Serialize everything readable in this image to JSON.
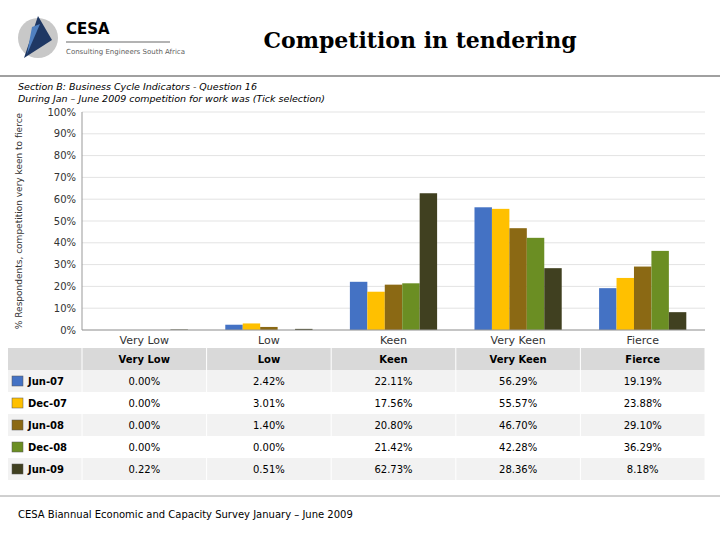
{
  "chart_data": {
    "type": "bar",
    "title": "Competition in tendering",
    "subtitle": [
      "Section B: Business Cycle Indicators - Question 16",
      "During Jan – June 2009 competition for work was (Tick selection)"
    ],
    "annotations": [
      "CESA",
      "Consulting Engineers South Africa",
      "CESA Biannual Economic and Capacity Survey January – June 2009"
    ],
    "y_label": "% Respondents, competition very keen to fierce",
    "categories": [
      "Very Low",
      "Low",
      "Keen",
      "Very Keen",
      "Fierce"
    ],
    "series": [
      {
        "name": "Jun-07",
        "color": "#4472C4",
        "values": [
          0.0,
          2.42,
          22.11,
          56.29,
          19.19
        ],
        "value_labels": [
          "0.00%",
          "2.42%",
          "22.11%",
          "56.29%",
          "19.19%"
        ]
      },
      {
        "name": "Dec-07",
        "color": "#FFC000",
        "values": [
          0.0,
          3.01,
          17.56,
          55.57,
          23.88
        ],
        "value_labels": [
          "0.00%",
          "3.01%",
          "17.56%",
          "55.57%",
          "23.88%"
        ]
      },
      {
        "name": "Jun-08",
        "color": "#8B6914",
        "values": [
          0.0,
          1.4,
          20.8,
          46.7,
          29.1
        ],
        "value_labels": [
          "0.00%",
          "1.40%",
          "20.80%",
          "46.70%",
          "29.10%"
        ]
      },
      {
        "name": "Dec-08",
        "color": "#6B8E23",
        "values": [
          0.0,
          0.0,
          21.42,
          42.28,
          36.29
        ],
        "value_labels": [
          "0.00%",
          "0.00%",
          "21.42%",
          "42.28%",
          "36.29%"
        ]
      },
      {
        "name": "Jun-09",
        "color": "#404020",
        "values": [
          0.22,
          0.51,
          62.73,
          28.36,
          8.18
        ],
        "value_labels": [
          "0.22%",
          "0.51%",
          "62.73%",
          "28.36%",
          "8.18%"
        ]
      }
    ],
    "ylim": [
      0,
      100
    ],
    "yticks": [
      {
        "value": 0,
        "label": "0%"
      },
      {
        "value": 10,
        "label": "10%"
      },
      {
        "value": 20,
        "label": "20%"
      },
      {
        "value": 30,
        "label": "30%"
      },
      {
        "value": 40,
        "label": "40%"
      },
      {
        "value": 50,
        "label": "50%"
      },
      {
        "value": 60,
        "label": "60%"
      },
      {
        "value": 70,
        "label": "70%"
      },
      {
        "value": 80,
        "label": "80%"
      },
      {
        "value": 90,
        "label": "90%"
      },
      {
        "value": 100,
        "label": "100%"
      }
    ],
    "grid": true
  }
}
